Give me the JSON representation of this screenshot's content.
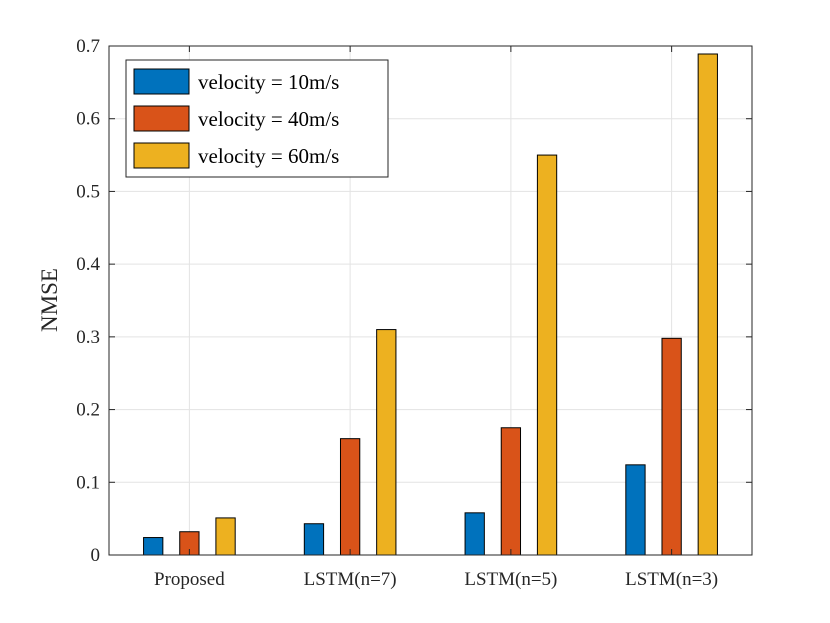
{
  "chart_data": {
    "type": "bar",
    "title": "",
    "xlabel": "",
    "ylabel": "NMSE",
    "ylim": [
      0,
      0.7
    ],
    "yticks": [
      "0",
      "0.1",
      "0.2",
      "0.3",
      "0.4",
      "0.5",
      "0.6",
      "0.7"
    ],
    "grid": true,
    "legend_position": "top-left",
    "categories": [
      "Proposed",
      "LSTM(n=7)",
      "LSTM(n=5)",
      "LSTM(n=3)"
    ],
    "series": [
      {
        "name": "velocity = 10m/s",
        "color": "#0072BD",
        "values": [
          0.024,
          0.043,
          0.058,
          0.124
        ]
      },
      {
        "name": "velocity = 40m/s",
        "color": "#D95319",
        "values": [
          0.032,
          0.16,
          0.175,
          0.298
        ]
      },
      {
        "name": "velocity = 60m/s",
        "color": "#EDB120",
        "values": [
          0.051,
          0.31,
          0.55,
          0.689
        ]
      }
    ]
  }
}
